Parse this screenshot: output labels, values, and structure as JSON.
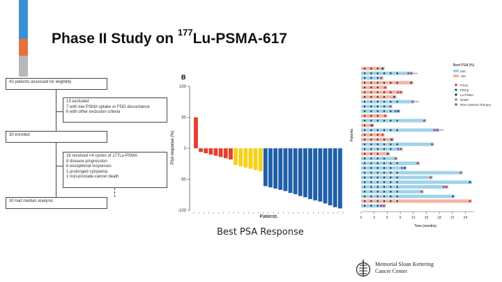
{
  "slide": {
    "title_prefix": "Phase II Study on ",
    "title_sup": "177",
    "title_suffix": "Lu-PSMA-617",
    "caption": "Best PSA Response",
    "accent_colors": [
      "#3b8fd6",
      "#e8703a",
      "#b8b8b8"
    ]
  },
  "flowchart": {
    "boxes": [
      {
        "text": "43 patients assessed for eligibility"
      },
      {
        "lines": [
          "13 excluded",
          "7 with low PSMA uptake or FDG discordance",
          "6 with other exclusion criteria"
        ]
      },
      {
        "text": "30 enrolled"
      },
      {
        "lines": [
          "16 received <4 cycles of 177Lu-PSMA",
          "8 disease progression",
          "6 exceptional responses",
          "1 prolonged cytopenia",
          "1 non-prostate-cancer death"
        ]
      },
      {
        "text": "30 had median analysis"
      }
    ]
  },
  "logo": {
    "line1": "Memorial Sloan Kettering",
    "line2": "Cancer Center",
    "icon": "msk-logo-icon"
  },
  "chart_data": [
    {
      "type": "bar",
      "panel_label": "B",
      "ylabel": "PSA response (%)",
      "xlabel": "Patients",
      "ylim": [
        -100,
        100
      ],
      "yticks": [
        100,
        50,
        0,
        -50,
        -100
      ],
      "values": [
        50,
        -6,
        -8,
        -10,
        -12,
        -14,
        -16,
        -18,
        -27,
        -29,
        -31,
        -33,
        -35,
        -37,
        -61,
        -63,
        -65,
        -67,
        -69,
        -72,
        -74,
        -77,
        -79,
        -82,
        -84,
        -86,
        -89,
        -92,
        -95,
        -97
      ],
      "colors": [
        "#e2402c",
        "#e2402c",
        "#e2402c",
        "#e2402c",
        "#e2402c",
        "#e2402c",
        "#e2402c",
        "#e2402c",
        "#f5d21a",
        "#f5d21a",
        "#f5d21a",
        "#f5d21a",
        "#f5d21a",
        "#f5d21a",
        "#1f5fa8",
        "#1f5fa8",
        "#1f5fa8",
        "#1f5fa8",
        "#1f5fa8",
        "#1f5fa8",
        "#1f5fa8",
        "#1f5fa8",
        "#1f5fa8",
        "#1f5fa8",
        "#1f5fa8",
        "#1f5fa8",
        "#1f5fa8",
        "#1f5fa8",
        "#1f5fa8",
        "#1f5fa8"
      ]
    },
    {
      "type": "swimmer",
      "ylabel": "Patients",
      "xlabel": "Time (months)",
      "xticks": [
        0,
        3,
        6,
        9,
        12,
        15,
        18,
        21,
        24
      ],
      "xlim": [
        0,
        26
      ],
      "legend_title": "Best PSA (%)",
      "legend_bar": [
        {
          "label": "≥50",
          "color": "#9fd3ea"
        },
        {
          "label": "<50",
          "color": "#f4b4a3"
        }
      ],
      "legend_markers": [
        {
          "label": "PSAp",
          "color": "#e2402c",
          "shape": "circle"
        },
        {
          "label": "PROp",
          "color": "#1f5fa8",
          "shape": "circle"
        },
        {
          "label": "Lu-PSMA",
          "color": "#222222",
          "shape": "diamond"
        },
        {
          "label": "Death",
          "color": "#888888",
          "shape": "circle"
        },
        {
          "label": "New systemic therapy",
          "color": "#8a4fa0",
          "shape": "circle"
        }
      ],
      "bars": [
        {
          "end": 5.4,
          "group": "lt50"
        },
        {
          "end": 12.0,
          "group": "ge50",
          "arrow": true
        },
        {
          "end": 5.1,
          "group": "ge50"
        },
        {
          "end": 12.0,
          "group": "lt50"
        },
        {
          "end": 6.0,
          "group": "lt50"
        },
        {
          "end": 9.6,
          "group": "lt50"
        },
        {
          "end": 8.1,
          "group": "lt50"
        },
        {
          "end": 12.3,
          "group": "ge50",
          "arrow": true
        },
        {
          "end": 7.2,
          "group": "ge50"
        },
        {
          "end": 9.0,
          "group": "ge50"
        },
        {
          "end": 6.0,
          "group": "lt50"
        },
        {
          "end": 15.0,
          "group": "ge50"
        },
        {
          "end": 3.0,
          "group": "lt50"
        },
        {
          "end": 18.0,
          "group": "ge50",
          "arrow": true
        },
        {
          "end": 5.4,
          "group": "lt50"
        },
        {
          "end": 7.5,
          "group": "lt50"
        },
        {
          "end": 16.8,
          "group": "ge50"
        },
        {
          "end": 9.6,
          "group": "ge50"
        },
        {
          "end": 6.6,
          "group": "lt50"
        },
        {
          "end": 8.4,
          "group": "ge50"
        },
        {
          "end": 13.5,
          "group": "ge50"
        },
        {
          "end": 10.5,
          "group": "ge50"
        },
        {
          "end": 23.4,
          "group": "ge50"
        },
        {
          "end": 16.5,
          "group": "ge50"
        },
        {
          "end": 25.5,
          "group": "ge50"
        },
        {
          "end": 20.1,
          "group": "ge50"
        },
        {
          "end": 14.4,
          "group": "ge50"
        },
        {
          "end": 21.6,
          "group": "ge50"
        },
        {
          "end": 25.5,
          "group": "lt50"
        },
        {
          "end": 5.7,
          "group": "ge50"
        }
      ]
    }
  ]
}
